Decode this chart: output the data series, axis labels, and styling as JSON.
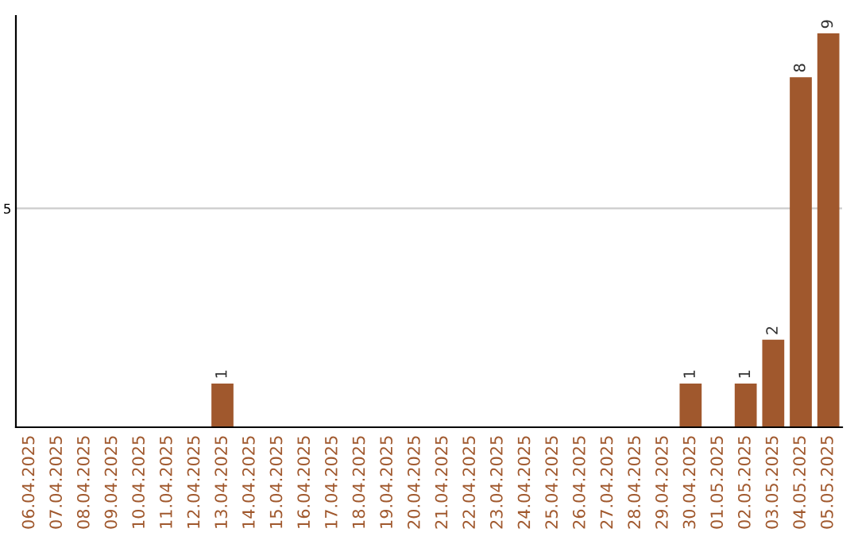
{
  "chart_data": {
    "type": "bar",
    "categories": [
      "06.04.2025",
      "07.04.2025",
      "08.04.2025",
      "09.04.2025",
      "10.04.2025",
      "11.04.2025",
      "12.04.2025",
      "13.04.2025",
      "14.04.2025",
      "15.04.2025",
      "16.04.2025",
      "17.04.2025",
      "18.04.2025",
      "19.04.2025",
      "20.04.2025",
      "21.04.2025",
      "22.04.2025",
      "23.04.2025",
      "24.04.2025",
      "25.04.2025",
      "26.04.2025",
      "27.04.2025",
      "28.04.2025",
      "29.04.2025",
      "30.04.2025",
      "01.05.2025",
      "02.05.2025",
      "03.05.2025",
      "04.05.2025",
      "05.05.2025"
    ],
    "values": [
      0,
      0,
      0,
      0,
      0,
      0,
      0,
      1,
      0,
      0,
      0,
      0,
      0,
      0,
      0,
      0,
      0,
      0,
      0,
      0,
      0,
      0,
      0,
      0,
      1,
      0,
      1,
      2,
      8,
      9
    ],
    "value_labels": [
      null,
      null,
      null,
      null,
      null,
      null,
      null,
      "1",
      null,
      null,
      null,
      null,
      null,
      null,
      null,
      null,
      null,
      null,
      null,
      null,
      null,
      null,
      null,
      null,
      "1",
      null,
      "1",
      "2",
      "8",
      "9"
    ],
    "color": "#a0582d",
    "ylim": [
      0,
      9.4
    ],
    "yticks": [
      5
    ],
    "grid": "y"
  }
}
